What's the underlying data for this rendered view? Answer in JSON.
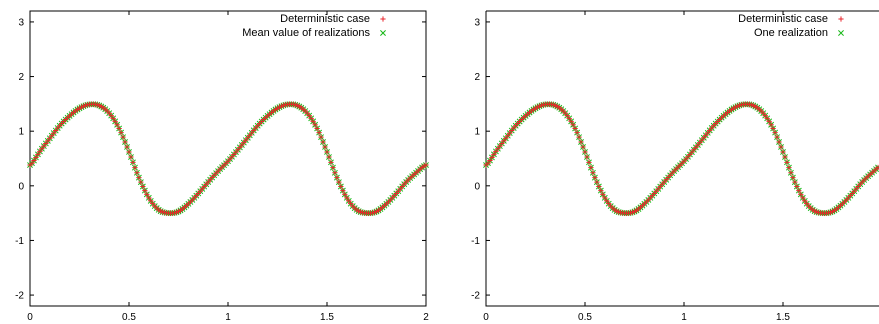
{
  "colors": {
    "deterministic": "#e8262c",
    "realization": "#18b818"
  },
  "chart_data": [
    {
      "type": "scatter",
      "title": "",
      "xlabel": "",
      "ylabel": "",
      "xlim": [
        0,
        2
      ],
      "ylim": [
        -2.2,
        3.2
      ],
      "xticks": [
        0,
        0.5,
        1,
        1.5,
        2
      ],
      "xtick_labels": [
        "0",
        "0.5",
        "1",
        "1.5",
        "2"
      ],
      "yticks": [
        -2,
        -1,
        0,
        1,
        2,
        3
      ],
      "ytick_labels": [
        "-2",
        "-1",
        "0",
        "1",
        "2",
        "3"
      ],
      "grid": false,
      "legend_position": "top-right",
      "series": [
        {
          "name": "Deterministic case",
          "marker": "plus",
          "x": [
            0,
            0.05,
            0.1,
            0.15,
            0.2,
            0.25,
            0.3,
            0.35,
            0.4,
            0.45,
            0.5,
            0.55,
            0.6,
            0.65,
            0.7,
            0.75,
            0.8,
            0.85,
            0.9,
            0.95,
            1,
            1.05,
            1.1,
            1.15,
            1.2,
            1.25,
            1.3,
            1.35,
            1.4,
            1.45,
            1.5,
            1.55,
            1.6,
            1.65,
            1.7,
            1.75,
            1.8,
            1.85,
            1.9,
            1.95,
            2
          ],
          "y": [
            0.38,
            0.63,
            0.87,
            1.1,
            1.28,
            1.42,
            1.49,
            1.47,
            1.33,
            1.05,
            0.62,
            0.15,
            -0.22,
            -0.44,
            -0.5,
            -0.47,
            -0.33,
            -0.14,
            0.07,
            0.27,
            0.45,
            0.66,
            0.88,
            1.1,
            1.28,
            1.42,
            1.49,
            1.47,
            1.33,
            1.05,
            0.62,
            0.15,
            -0.22,
            -0.44,
            -0.5,
            -0.47,
            -0.33,
            -0.14,
            0.07,
            0.24,
            0.38
          ]
        },
        {
          "name": "Mean value of realizations",
          "marker": "cross",
          "x": [
            0,
            0.05,
            0.1,
            0.15,
            0.2,
            0.25,
            0.3,
            0.35,
            0.4,
            0.45,
            0.5,
            0.55,
            0.6,
            0.65,
            0.7,
            0.75,
            0.8,
            0.85,
            0.9,
            0.95,
            1,
            1.05,
            1.1,
            1.15,
            1.2,
            1.25,
            1.3,
            1.35,
            1.4,
            1.45,
            1.5,
            1.55,
            1.6,
            1.65,
            1.7,
            1.75,
            1.8,
            1.85,
            1.9,
            1.95,
            2
          ],
          "y": [
            0.38,
            0.63,
            0.87,
            1.1,
            1.28,
            1.42,
            1.49,
            1.47,
            1.33,
            1.05,
            0.62,
            0.15,
            -0.22,
            -0.44,
            -0.5,
            -0.47,
            -0.33,
            -0.14,
            0.07,
            0.27,
            0.45,
            0.66,
            0.88,
            1.1,
            1.28,
            1.42,
            1.49,
            1.47,
            1.33,
            1.05,
            0.62,
            0.15,
            -0.22,
            -0.44,
            -0.5,
            -0.47,
            -0.33,
            -0.14,
            0.07,
            0.24,
            0.38
          ]
        }
      ]
    },
    {
      "type": "scatter",
      "title": "",
      "xlabel": "",
      "ylabel": "",
      "xlim": [
        0,
        2
      ],
      "ylim": [
        -2.2,
        3.2
      ],
      "xticks": [
        0,
        0.5,
        1,
        1.5
      ],
      "xtick_labels": [
        "0",
        "0.5",
        "1",
        "1.5"
      ],
      "yticks": [
        -2,
        -1,
        0,
        1,
        2,
        3
      ],
      "ytick_labels": [
        "-2",
        "-1",
        "0",
        "1",
        "2",
        "3"
      ],
      "grid": false,
      "legend_position": "top-right",
      "series": [
        {
          "name": "Deterministic case",
          "marker": "plus",
          "x": [
            0,
            0.05,
            0.1,
            0.15,
            0.2,
            0.25,
            0.3,
            0.35,
            0.4,
            0.45,
            0.5,
            0.55,
            0.6,
            0.65,
            0.7,
            0.75,
            0.8,
            0.85,
            0.9,
            0.95,
            1,
            1.05,
            1.1,
            1.15,
            1.2,
            1.25,
            1.3,
            1.35,
            1.4,
            1.45,
            1.5,
            1.55,
            1.6,
            1.65,
            1.7,
            1.75,
            1.8,
            1.85,
            1.9,
            1.95,
            2
          ],
          "y": [
            0.38,
            0.63,
            0.87,
            1.1,
            1.28,
            1.42,
            1.49,
            1.47,
            1.33,
            1.05,
            0.62,
            0.15,
            -0.22,
            -0.44,
            -0.5,
            -0.47,
            -0.33,
            -0.14,
            0.07,
            0.27,
            0.45,
            0.66,
            0.88,
            1.1,
            1.28,
            1.42,
            1.49,
            1.47,
            1.33,
            1.05,
            0.62,
            0.15,
            -0.22,
            -0.44,
            -0.5,
            -0.47,
            -0.33,
            -0.14,
            0.07,
            0.24,
            0.38
          ]
        },
        {
          "name": "One realization",
          "marker": "cross",
          "x": [
            0,
            0.05,
            0.1,
            0.15,
            0.2,
            0.25,
            0.3,
            0.35,
            0.4,
            0.45,
            0.5,
            0.55,
            0.6,
            0.65,
            0.7,
            0.75,
            0.8,
            0.85,
            0.9,
            0.95,
            1,
            1.05,
            1.1,
            1.15,
            1.2,
            1.25,
            1.3,
            1.35,
            1.4,
            1.45,
            1.5,
            1.55,
            1.6,
            1.65,
            1.7,
            1.75,
            1.8,
            1.85,
            1.9,
            1.95,
            2
          ],
          "y": [
            0.38,
            0.63,
            0.87,
            1.1,
            1.28,
            1.42,
            1.49,
            1.47,
            1.33,
            1.05,
            0.62,
            0.15,
            -0.22,
            -0.44,
            -0.5,
            -0.47,
            -0.33,
            -0.14,
            0.07,
            0.27,
            0.45,
            0.66,
            0.88,
            1.1,
            1.28,
            1.42,
            1.49,
            1.47,
            1.33,
            1.05,
            0.62,
            0.15,
            -0.22,
            -0.44,
            -0.5,
            -0.47,
            -0.33,
            -0.14,
            0.07,
            0.24,
            0.38
          ]
        }
      ]
    }
  ]
}
